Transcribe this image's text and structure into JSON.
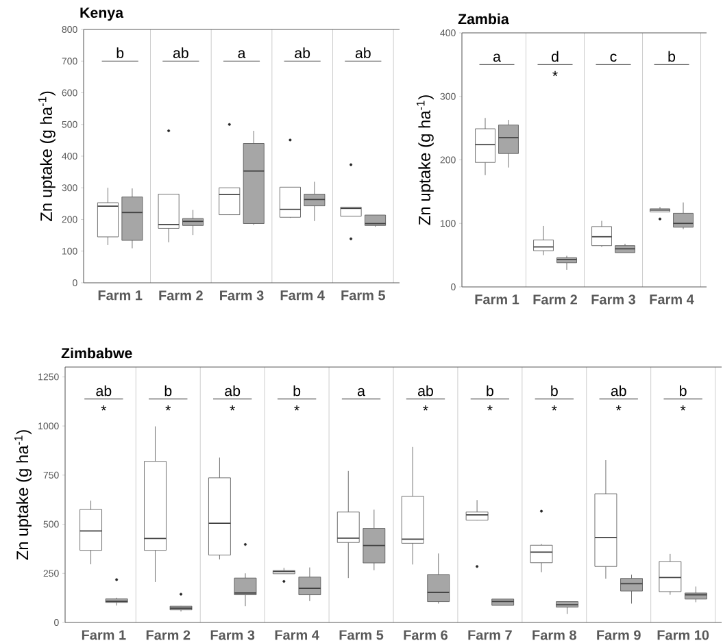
{
  "chart_data": [
    {
      "type": "box",
      "title": "Kenya",
      "ylabel": "Zn uptake (g ha$^{-1}$)",
      "categories": [
        "Farm 1",
        "Farm 2",
        "Farm 3",
        "Farm 4",
        "Farm 5"
      ],
      "ylim": [
        0,
        800
      ],
      "yticks": [
        0,
        100,
        200,
        300,
        400,
        500,
        600,
        700,
        800
      ],
      "grid": "x",
      "series": [
        {
          "color": "#ffffff",
          "boxes": [
            {
              "low": 119,
              "q1": 145,
              "median": 242,
              "q3": 253,
              "high": 300
            },
            {
              "low": 128,
              "q1": 172,
              "median": 184,
              "q3": 280,
              "high": 280,
              "outliers": [
                480
              ]
            },
            {
              "low": 214,
              "q1": 215,
              "median": 279,
              "q3": 300,
              "high": 300,
              "outliers": [
                500
              ]
            },
            {
              "low": 205,
              "q1": 207,
              "median": 232,
              "q3": 302,
              "high": 302,
              "outliers": [
                451
              ]
            },
            {
              "low": 210,
              "q1": 210,
              "median": 235,
              "q3": 239,
              "high": 239,
              "outliers": [
                373,
                139
              ]
            }
          ]
        },
        {
          "color": "#a6a6a6",
          "boxes": [
            {
              "low": 109,
              "q1": 134,
              "median": 222,
              "q3": 271,
              "high": 298
            },
            {
              "low": 151,
              "q1": 181,
              "median": 194,
              "q3": 203,
              "high": 230
            },
            {
              "low": 183,
              "q1": 187,
              "median": 353,
              "q3": 440,
              "high": 480
            },
            {
              "low": 195,
              "q1": 243,
              "median": 263,
              "q3": 280,
              "high": 319
            },
            {
              "low": 177,
              "q1": 181,
              "median": 187,
              "q3": 214,
              "high": 214
            }
          ]
        }
      ],
      "annotations": [
        "b",
        "ab",
        "a",
        "ab",
        "ab"
      ]
    },
    {
      "type": "box",
      "title": "Zambia",
      "ylabel": "Zn uptake (g ha$^{-1}$)",
      "categories": [
        "Farm 1",
        "Farm 2",
        "Farm 3",
        "Farm 4"
      ],
      "ylim": [
        0,
        400
      ],
      "yticks": [
        0,
        100,
        200,
        300,
        400
      ],
      "grid": "x",
      "series": [
        {
          "color": "#ffffff",
          "boxes": [
            {
              "low": 176,
              "q1": 196,
              "median": 224,
              "q3": 249,
              "high": 266
            },
            {
              "low": 50,
              "q1": 57,
              "median": 63,
              "q3": 74,
              "high": 96
            },
            {
              "low": 63,
              "q1": 65,
              "median": 79,
              "q3": 95,
              "high": 104
            },
            {
              "low": 118,
              "q1": 118,
              "median": 121,
              "q3": 123,
              "high": 126,
              "outliers": [
                107
              ]
            }
          ]
        },
        {
          "color": "#a6a6a6",
          "boxes": [
            {
              "low": 188,
              "q1": 210,
              "median": 235,
              "q3": 255,
              "high": 263
            },
            {
              "low": 27,
              "q1": 38,
              "median": 43,
              "q3": 46,
              "high": 49
            },
            {
              "low": 54,
              "q1": 54,
              "median": 60,
              "q3": 65,
              "high": 68
            },
            {
              "low": 91,
              "q1": 94,
              "median": 100,
              "q3": 116,
              "high": 133
            }
          ]
        }
      ],
      "annotations": [
        "a",
        "d",
        "c",
        "b",
        null,
        "*",
        null,
        null
      ]
    },
    {
      "type": "box",
      "title": "Zimbabwe",
      "ylabel": "Zn uptake (g ha$^{-1}$)",
      "categories": [
        "Farm 1",
        "Farm 2",
        "Farm 3",
        "Farm 4",
        "Farm 5",
        "Farm 6",
        "Farm 7",
        "Farm 8",
        "Farm 9",
        "Farm 10"
      ],
      "ylim": [
        0,
        1300
      ],
      "yticks": [
        0,
        250,
        500,
        750,
        1000,
        1250
      ],
      "grid": "x",
      "series": [
        {
          "color": "#ffffff",
          "boxes": [
            {
              "low": 296,
              "q1": 367,
              "median": 466,
              "q3": 575,
              "high": 620
            },
            {
              "low": 206,
              "q1": 367,
              "median": 427,
              "q3": 820,
              "high": 998
            },
            {
              "low": 321,
              "q1": 343,
              "median": 505,
              "q3": 736,
              "high": 839
            },
            {
              "low": 248,
              "q1": 248,
              "median": 259,
              "q3": 264,
              "high": 278,
              "outliers": [
                209
              ]
            },
            {
              "low": 226,
              "q1": 407,
              "median": 429,
              "q3": 562,
              "high": 771
            },
            {
              "low": 295,
              "q1": 403,
              "median": 424,
              "q3": 642,
              "high": 893
            },
            {
              "low": 519,
              "q1": 521,
              "median": 548,
              "q3": 562,
              "high": 623,
              "outliers": [
                285
              ]
            },
            {
              "low": 256,
              "q1": 304,
              "median": 358,
              "q3": 393,
              "high": 399,
              "outliers": [
                566
              ]
            },
            {
              "low": 223,
              "q1": 285,
              "median": 433,
              "q3": 655,
              "high": 826
            },
            {
              "low": 141,
              "q1": 157,
              "median": 229,
              "q3": 310,
              "high": 349
            }
          ]
        },
        {
          "color": "#a6a6a6",
          "boxes": [
            {
              "low": 86,
              "q1": 102,
              "median": 108,
              "q3": 120,
              "high": 126,
              "outliers": [
                218
              ]
            },
            {
              "low": 56,
              "q1": 64,
              "median": 73,
              "q3": 83,
              "high": 84,
              "outliers": [
                144
              ]
            },
            {
              "low": 83,
              "q1": 141,
              "median": 150,
              "q3": 226,
              "high": 250,
              "outliers": [
                397
              ]
            },
            {
              "low": 109,
              "q1": 141,
              "median": 174,
              "q3": 231,
              "high": 280
            },
            {
              "low": 266,
              "q1": 303,
              "median": 392,
              "q3": 479,
              "high": 574
            },
            {
              "low": 96,
              "q1": 106,
              "median": 153,
              "q3": 244,
              "high": 351
            },
            {
              "low": 87,
              "q1": 87,
              "median": 107,
              "q3": 119,
              "high": 119
            },
            {
              "low": 43,
              "q1": 78,
              "median": 90,
              "q3": 106,
              "high": 106
            },
            {
              "low": 96,
              "q1": 160,
              "median": 197,
              "q3": 224,
              "high": 243
            },
            {
              "low": 103,
              "q1": 119,
              "median": 141,
              "q3": 150,
              "high": 183
            }
          ]
        }
      ],
      "annotations": [
        "ab",
        "b",
        "ab",
        "b",
        "a",
        "ab",
        "b",
        "b",
        "ab",
        "b",
        "*",
        "*",
        "*",
        "*",
        null,
        "*",
        "*",
        "*",
        "*",
        "*"
      ]
    }
  ]
}
